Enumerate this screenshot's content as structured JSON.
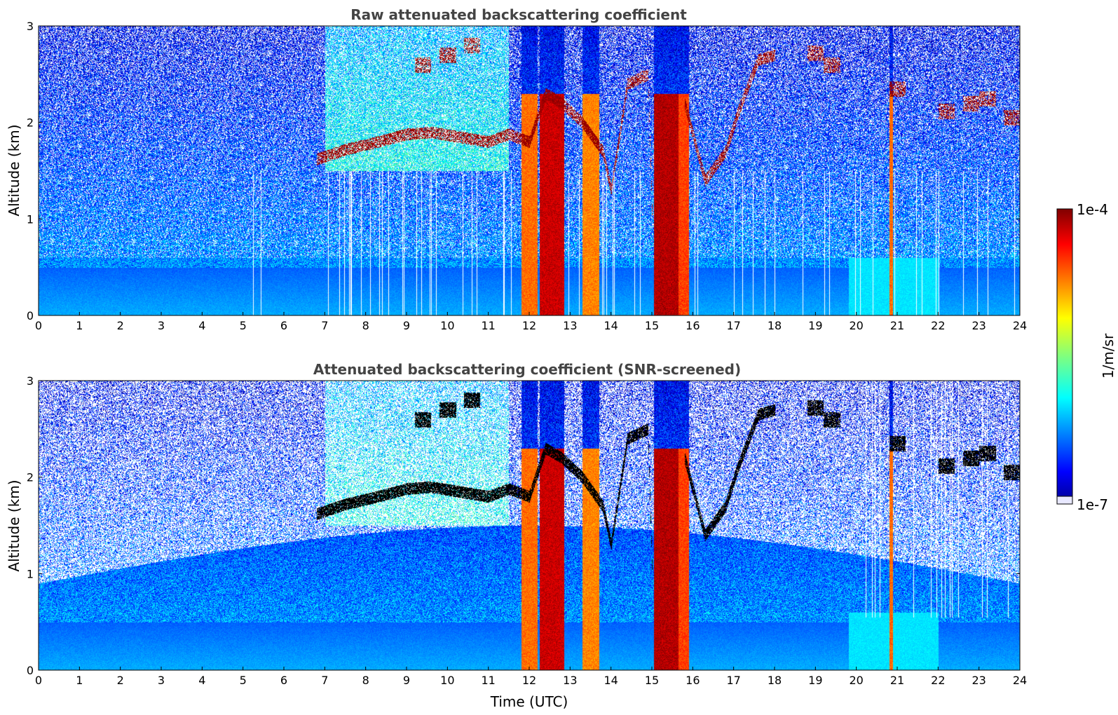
{
  "chart_data": [
    {
      "type": "heatmap",
      "title": "Raw attenuated backscattering coefficient",
      "xlabel": "",
      "ylabel": "Altitude (km)",
      "xlim": [
        0,
        24
      ],
      "ylim": [
        0,
        3
      ],
      "x_ticks": [
        "0",
        "1",
        "2",
        "3",
        "4",
        "5",
        "6",
        "7",
        "8",
        "9",
        "10",
        "11",
        "12",
        "13",
        "14",
        "15",
        "16",
        "17",
        "18",
        "19",
        "20",
        "21",
        "22",
        "23",
        "24"
      ],
      "y_ticks": [
        "0",
        "1",
        "2",
        "3"
      ],
      "screened": false,
      "features": {
        "background_decay": "strong signal near surface decreasing with altitude",
        "dense_columns": [
          {
            "t0": 11.8,
            "t1": 12.2,
            "peak": 0.6
          },
          {
            "t0": 12.25,
            "t1": 12.85,
            "peak": 0.95
          },
          {
            "t0": 13.3,
            "t1": 13.7,
            "peak": 0.55
          },
          {
            "t0": 15.05,
            "t1": 15.65,
            "peak": 1.0
          },
          {
            "t0": 15.65,
            "t1": 15.9,
            "peak": 0.7
          },
          {
            "t0": 20.8,
            "t1": 20.88,
            "peak": 0.6
          }
        ],
        "cloud_layer": [
          [
            6.8,
            1.62
          ],
          [
            7.5,
            1.72
          ],
          [
            8.3,
            1.8
          ],
          [
            9.0,
            1.88
          ],
          [
            9.6,
            1.9
          ],
          [
            10.3,
            1.85
          ],
          [
            11.0,
            1.8
          ],
          [
            11.5,
            1.88
          ],
          [
            12.0,
            1.8
          ],
          [
            12.4,
            2.3
          ],
          [
            12.8,
            2.2
          ],
          [
            13.3,
            2.0
          ],
          [
            13.8,
            1.7
          ],
          [
            14.0,
            1.3
          ],
          [
            14.4,
            2.4
          ],
          [
            14.9,
            2.5
          ],
          [
            15.0,
            1.1
          ]
        ],
        "cloud_layer_2": [
          [
            15.8,
            2.2
          ],
          [
            16.3,
            1.4
          ],
          [
            16.8,
            1.7
          ],
          [
            17.1,
            2.1
          ],
          [
            17.6,
            2.65
          ],
          [
            18.0,
            2.7
          ]
        ],
        "cloud_patches": [
          [
            9.4,
            2.6
          ],
          [
            10.0,
            2.7
          ],
          [
            10.6,
            2.8
          ],
          [
            19.0,
            2.72
          ],
          [
            19.4,
            2.6
          ],
          [
            21.0,
            2.35
          ],
          [
            22.2,
            2.12
          ],
          [
            22.8,
            2.2
          ],
          [
            23.2,
            2.25
          ],
          [
            23.8,
            2.05
          ]
        ]
      }
    },
    {
      "type": "heatmap",
      "title": "Attenuated backscattering coefficient (SNR-screened)",
      "xlabel": "Time (UTC)",
      "ylabel": "Altitude (km)",
      "xlim": [
        0,
        24
      ],
      "ylim": [
        0,
        3
      ],
      "x_ticks": [
        "0",
        "1",
        "2",
        "3",
        "4",
        "5",
        "6",
        "7",
        "8",
        "9",
        "10",
        "11",
        "12",
        "13",
        "14",
        "15",
        "16",
        "17",
        "18",
        "19",
        "20",
        "21",
        "22",
        "23",
        "24"
      ],
      "y_ticks": [
        "0",
        "1",
        "2",
        "3"
      ],
      "screened": true,
      "saturated_color": "#000000"
    }
  ],
  "colorbar": {
    "label": "1/m/sr",
    "max_label": "1e-4",
    "min_label": "1e-7",
    "colormap": "jet"
  },
  "colors": {
    "title": "#444444",
    "background": "#ffffff"
  }
}
